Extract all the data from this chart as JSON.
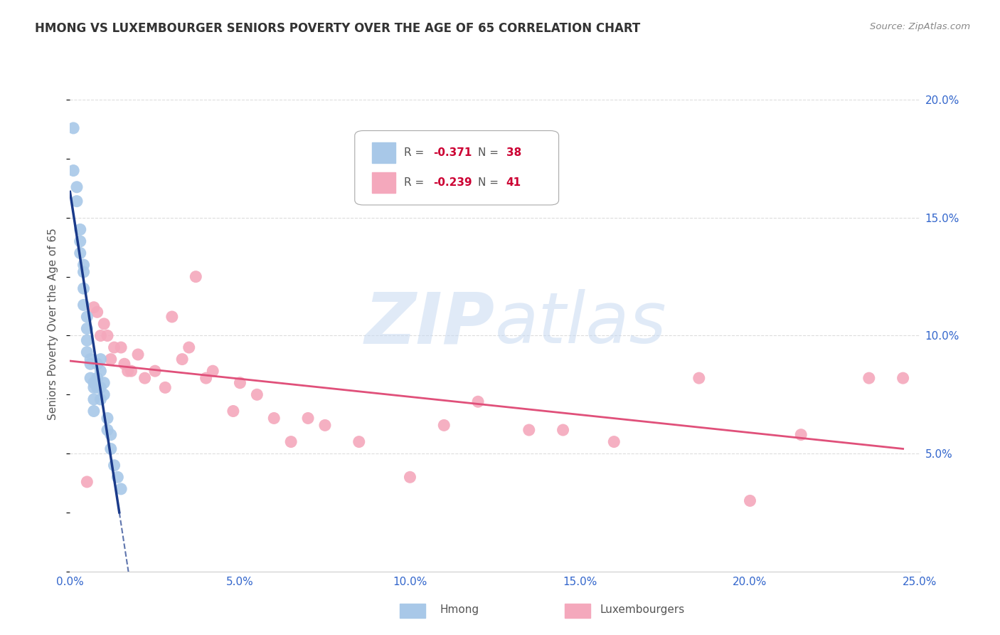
{
  "title": "HMONG VS LUXEMBOURGER SENIORS POVERTY OVER THE AGE OF 65 CORRELATION CHART",
  "source": "Source: ZipAtlas.com",
  "ylabel": "Seniors Poverty Over the Age of 65",
  "xlim": [
    0.0,
    0.25
  ],
  "ylim": [
    0.0,
    0.21
  ],
  "xticks": [
    0.0,
    0.05,
    0.1,
    0.15,
    0.2,
    0.25
  ],
  "yticks_right": [
    0.05,
    0.1,
    0.15,
    0.2
  ],
  "ytick_labels_right": [
    "5.0%",
    "10.0%",
    "15.0%",
    "20.0%"
  ],
  "xtick_labels": [
    "0.0%",
    "5.0%",
    "10.0%",
    "15.0%",
    "20.0%",
    "25.0%"
  ],
  "hmong_color": "#a8c8e8",
  "luxembourger_color": "#f4a8bc",
  "hmong_line_color": "#1a3a8a",
  "luxembourger_line_color": "#e0507a",
  "watermark_zip": "ZIP",
  "watermark_atlas": "atlas",
  "watermark_color_zip": "#c8daf0",
  "watermark_color_atlas": "#c8daf0",
  "background_color": "#ffffff",
  "grid_color": "#dddddd",
  "hmong_x": [
    0.001,
    0.001,
    0.002,
    0.002,
    0.003,
    0.003,
    0.003,
    0.004,
    0.004,
    0.004,
    0.004,
    0.005,
    0.005,
    0.005,
    0.005,
    0.006,
    0.006,
    0.006,
    0.007,
    0.007,
    0.007,
    0.007,
    0.008,
    0.008,
    0.008,
    0.009,
    0.009,
    0.009,
    0.009,
    0.01,
    0.01,
    0.011,
    0.011,
    0.012,
    0.012,
    0.013,
    0.014,
    0.015
  ],
  "hmong_y": [
    0.188,
    0.17,
    0.163,
    0.157,
    0.145,
    0.14,
    0.135,
    0.13,
    0.127,
    0.12,
    0.113,
    0.108,
    0.103,
    0.098,
    0.093,
    0.09,
    0.088,
    0.082,
    0.08,
    0.078,
    0.073,
    0.068,
    0.088,
    0.082,
    0.078,
    0.09,
    0.085,
    0.078,
    0.073,
    0.08,
    0.075,
    0.065,
    0.06,
    0.058,
    0.052,
    0.045,
    0.04,
    0.035
  ],
  "lux_x": [
    0.005,
    0.007,
    0.008,
    0.009,
    0.01,
    0.011,
    0.012,
    0.013,
    0.015,
    0.016,
    0.017,
    0.018,
    0.02,
    0.022,
    0.025,
    0.028,
    0.03,
    0.033,
    0.035,
    0.037,
    0.04,
    0.042,
    0.048,
    0.05,
    0.055,
    0.06,
    0.065,
    0.07,
    0.075,
    0.085,
    0.1,
    0.11,
    0.12,
    0.135,
    0.145,
    0.16,
    0.185,
    0.2,
    0.215,
    0.235,
    0.245
  ],
  "lux_y": [
    0.038,
    0.112,
    0.11,
    0.1,
    0.105,
    0.1,
    0.09,
    0.095,
    0.095,
    0.088,
    0.085,
    0.085,
    0.092,
    0.082,
    0.085,
    0.078,
    0.108,
    0.09,
    0.095,
    0.125,
    0.082,
    0.085,
    0.068,
    0.08,
    0.075,
    0.065,
    0.055,
    0.065,
    0.062,
    0.055,
    0.04,
    0.062,
    0.072,
    0.06,
    0.06,
    0.055,
    0.082,
    0.03,
    0.058,
    0.082,
    0.082
  ]
}
